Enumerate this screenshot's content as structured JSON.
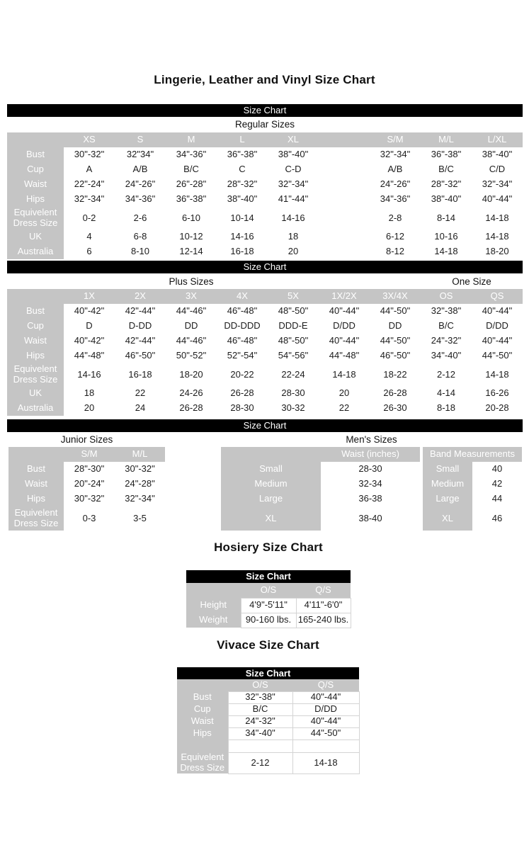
{
  "page": {
    "title": "Lingerie, Leather and Vinyl Size Chart",
    "bar_label": "Size Chart"
  },
  "regular": {
    "section_label": "Regular Sizes",
    "columns": [
      "XS",
      "S",
      "M",
      "L",
      "XL",
      "",
      "S/M",
      "M/L",
      "L/XL"
    ],
    "rows": [
      {
        "label": "Bust",
        "values": [
          "30\"-32\"",
          "32\"34\"",
          "34\"-36\"",
          "36\"-38\"",
          "38\"-40\"",
          "",
          "32\"-34\"",
          "36\"-38\"",
          "38\"-40\""
        ]
      },
      {
        "label": "Cup",
        "values": [
          "A",
          "A/B",
          "B/C",
          "C",
          "C-D",
          "",
          "A/B",
          "B/C",
          "C/D"
        ]
      },
      {
        "label": "Waist",
        "values": [
          "22\"-24\"",
          "24\"-26\"",
          "26\"-28\"",
          "28\"-32\"",
          "32\"-34\"",
          "",
          "24\"-26\"",
          "28\"-32\"",
          "32\"-34\""
        ]
      },
      {
        "label": "Hips",
        "values": [
          "32\"-34\"",
          "34\"-36\"",
          "36\"-38\"",
          "38\"-40\"",
          "41\"-44\"",
          "",
          "34\"-36\"",
          "38\"-40\"",
          "40\"-44\""
        ]
      },
      {
        "label": "Equivelent Dress Size",
        "tall": true,
        "values": [
          "0-2",
          "2-6",
          "6-10",
          "10-14",
          "14-16",
          "",
          "2-8",
          "8-14",
          "14-18"
        ]
      },
      {
        "label": "UK",
        "values": [
          "4",
          "6-8",
          "10-12",
          "14-16",
          "18",
          "",
          "6-12",
          "10-16",
          "14-18"
        ]
      },
      {
        "label": "Australia",
        "values": [
          "6",
          "8-10",
          "12-14",
          "16-18",
          "20",
          "",
          "8-12",
          "14-18",
          "18-20"
        ]
      }
    ]
  },
  "plus": {
    "section_label": "Plus Sizes",
    "one_size_label": "One Size",
    "columns": [
      "1X",
      "2X",
      "3X",
      "4X",
      "5X",
      "1X/2X",
      "3X/4X",
      "OS",
      "QS"
    ],
    "rows": [
      {
        "label": "Bust",
        "values": [
          "40\"-42\"",
          "42\"-44\"",
          "44\"-46\"",
          "46\"-48\"",
          "48\"-50\"",
          "40\"-44\"",
          "44\"-50\"",
          "32\"-38\"",
          "40\"-44\""
        ]
      },
      {
        "label": "Cup",
        "values": [
          "D",
          "D-DD",
          "DD",
          "DD-DDD",
          "DDD-E",
          "D/DD",
          "DD",
          "B/C",
          "D/DD"
        ]
      },
      {
        "label": "Waist",
        "values": [
          "40\"-42\"",
          "42\"-44\"",
          "44\"-46\"",
          "46\"-48\"",
          "48\"-50\"",
          "40\"-44\"",
          "44\"-50\"",
          "24\"-32\"",
          "40\"-44\""
        ]
      },
      {
        "label": "Hips",
        "values": [
          "44\"-48\"",
          "46\"-50\"",
          "50\"-52\"",
          "52\"-54\"",
          "54\"-56\"",
          "44\"-48\"",
          "46\"-50\"",
          "34\"-40\"",
          "44\"-50\""
        ]
      },
      {
        "label": "Equivelent Dress Size",
        "tall": true,
        "values": [
          "14-16",
          "16-18",
          "18-20",
          "20-22",
          "22-24",
          "14-18",
          "18-22",
          "2-12",
          "14-18"
        ]
      },
      {
        "label": "UK",
        "values": [
          "18",
          "22",
          "24-26",
          "26-28",
          "28-30",
          "20",
          "26-28",
          "4-14",
          "16-26"
        ]
      },
      {
        "label": "Australia",
        "values": [
          "20",
          "24",
          "26-28",
          "28-30",
          "30-32",
          "22",
          "26-30",
          "8-18",
          "20-28"
        ]
      }
    ]
  },
  "junior": {
    "section_label": "Junior Sizes",
    "columns": [
      "S/M",
      "M/L"
    ],
    "rows": [
      {
        "label": "Bust",
        "values": [
          "28\"-30\"",
          "30\"-32\""
        ]
      },
      {
        "label": "Waist",
        "values": [
          "20\"-24\"",
          "24\"-28\""
        ]
      },
      {
        "label": "Hips",
        "values": [
          "30\"-32\"",
          "32\"-34\""
        ]
      },
      {
        "label": "Equivelent Dress Size",
        "tall": true,
        "values": [
          "0-3",
          "3-5"
        ]
      }
    ]
  },
  "mens": {
    "section_label": "Men's Sizes",
    "waist": {
      "header": "Waist (inches)",
      "rows": [
        {
          "label": "Small",
          "value": "28-30"
        },
        {
          "label": "Medium",
          "value": "32-34"
        },
        {
          "label": "Large",
          "value": "36-38"
        },
        {
          "label": "XL",
          "value": "38-40",
          "tall": true
        }
      ]
    },
    "band": {
      "header": "Band Measurements",
      "rows": [
        {
          "label": "Small",
          "value": "40"
        },
        {
          "label": "Medium",
          "value": "42"
        },
        {
          "label": "Large",
          "value": "44"
        },
        {
          "label": "XL",
          "value": "46",
          "tall": true
        }
      ]
    }
  },
  "hosiery": {
    "title": "Hosiery Size Chart",
    "bar_label": "Size Chart",
    "columns": [
      "O/S",
      "Q/S"
    ],
    "rows": [
      {
        "label": "Height",
        "values": [
          "4'9\"-5'11\"",
          "4'11\"-6'0\""
        ]
      },
      {
        "label": "Weight",
        "values": [
          "90-160 lbs.",
          "165-240 lbs."
        ]
      }
    ]
  },
  "vivace": {
    "title": "Vivace Size Chart",
    "bar_label": "Size Chart",
    "columns": [
      "O/S",
      "Q/S"
    ],
    "rows": [
      {
        "label": "Bust",
        "values": [
          "32\"-38\"",
          "40\"-44\""
        ]
      },
      {
        "label": "Cup",
        "values": [
          "B/C",
          "D/DD"
        ]
      },
      {
        "label": "Waist",
        "values": [
          "24\"-32\"",
          "40\"-44\""
        ]
      },
      {
        "label": "Hips",
        "values": [
          "34\"-40\"",
          "44\"-50\""
        ]
      },
      {
        "type": "spacer",
        "label": "",
        "values": [
          "",
          ""
        ]
      },
      {
        "label": "Equivelent Dress Size",
        "tall": true,
        "values": [
          "2-12",
          "14-18"
        ]
      }
    ]
  },
  "colors": {
    "bar_bg": "#000000",
    "bar_text": "#ffffff",
    "header_bg": "#c5c5c5",
    "header_text": "#ffffff",
    "cell_text": "#1c1c1c",
    "page_bg": "#ffffff"
  }
}
